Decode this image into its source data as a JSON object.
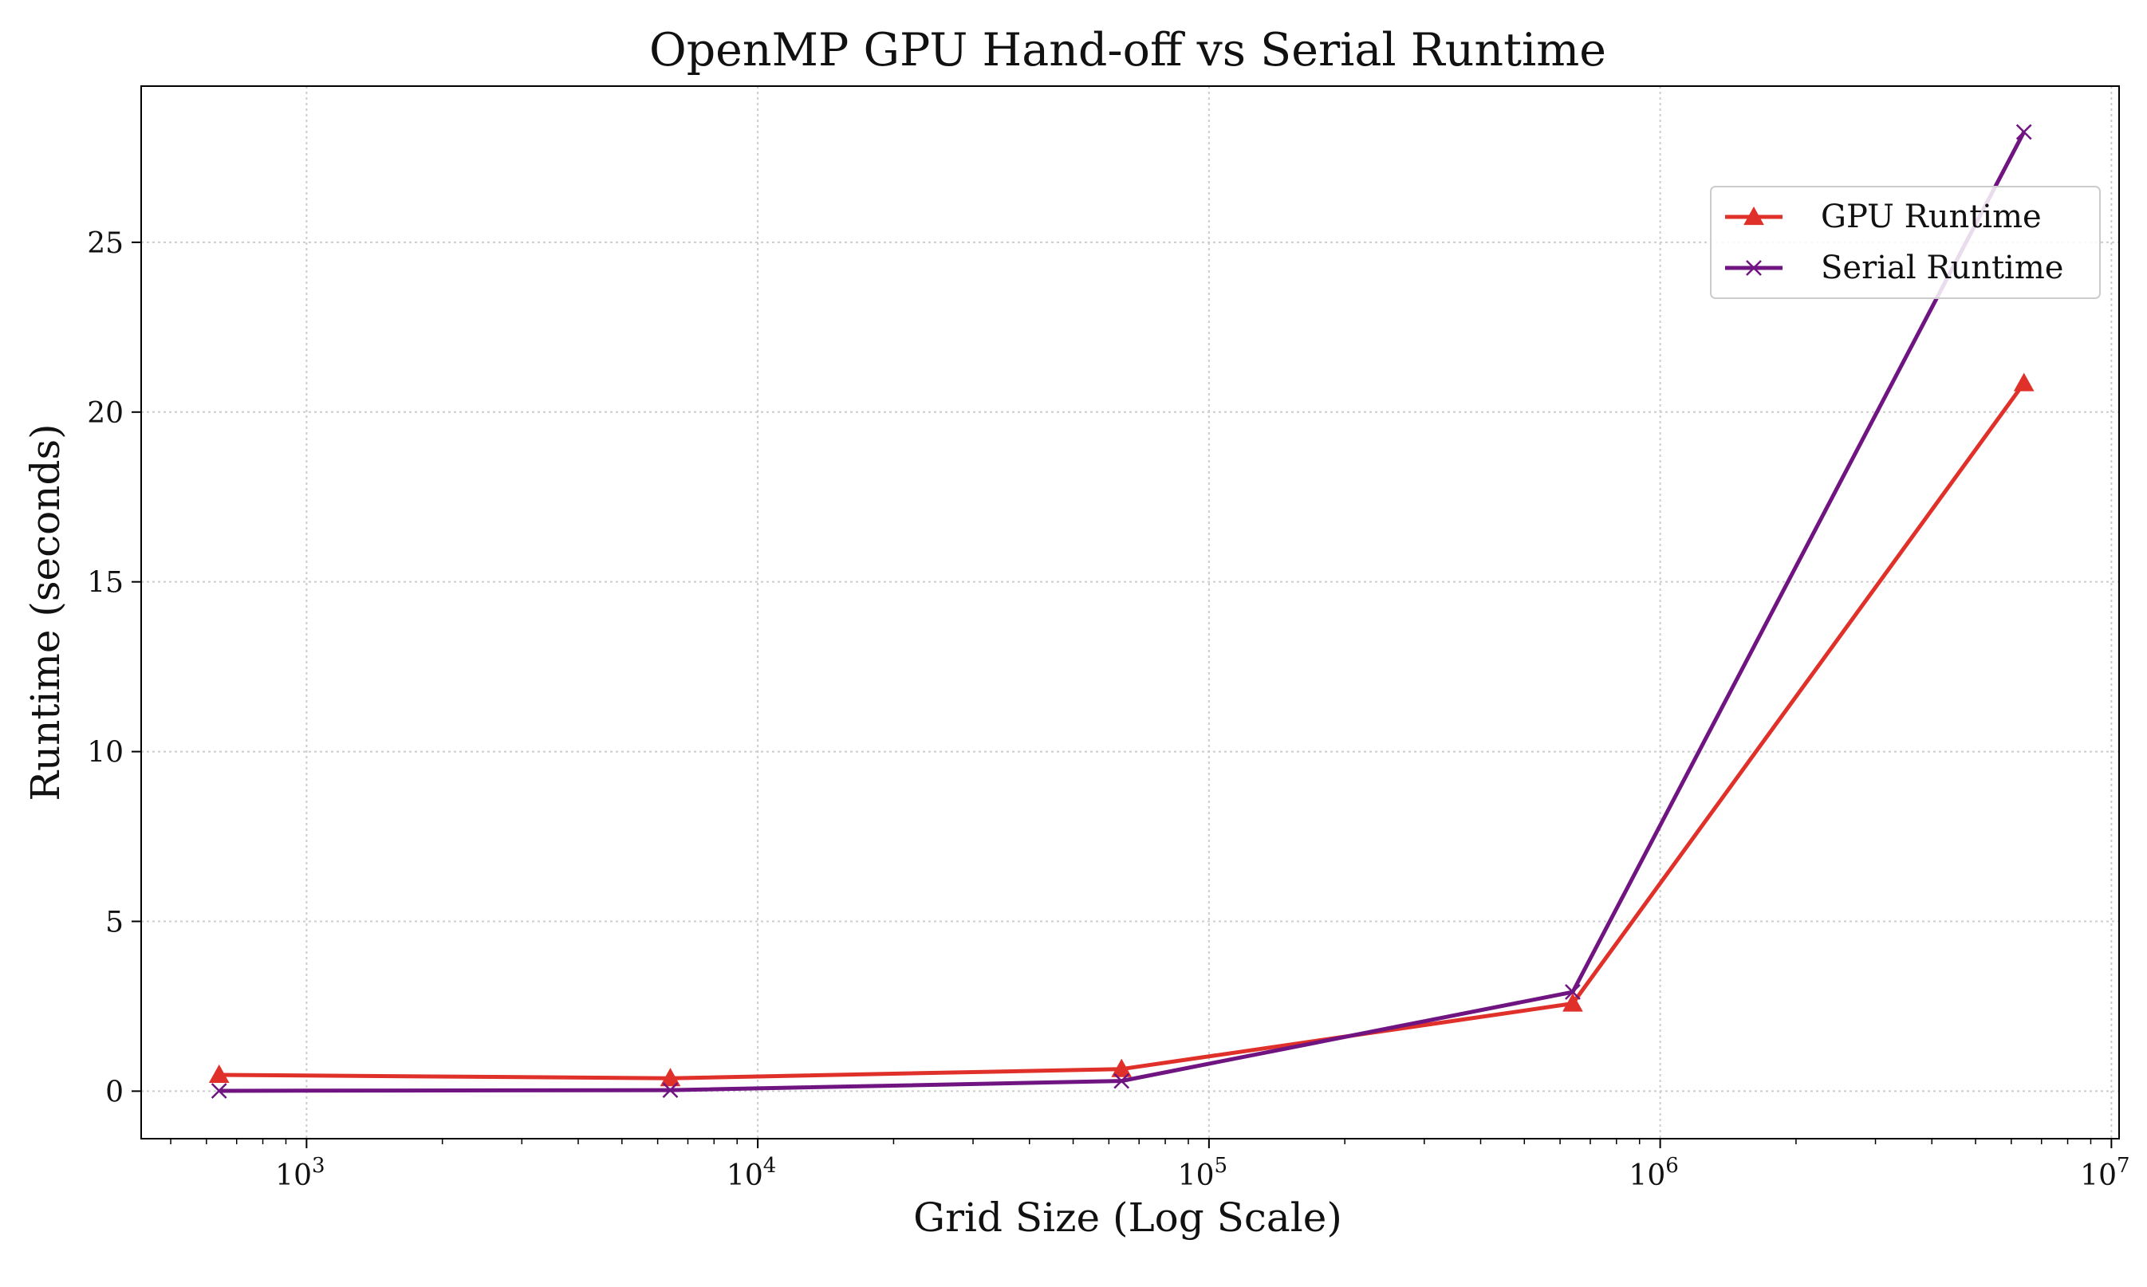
{
  "chart_data": {
    "type": "line",
    "title": "OpenMP GPU Hand-off vs Serial Runtime",
    "xlabel": "Grid Size (Log Scale)",
    "ylabel": "Runtime (seconds)",
    "x_scale": "log",
    "x": [
      640,
      6400,
      64000,
      640000,
      6400000
    ],
    "xlim": [
      430,
      10400000
    ],
    "ylim": [
      -1.4,
      29.6
    ],
    "x_ticks": [
      {
        "value": 1000,
        "base": "10",
        "exp": "3"
      },
      {
        "value": 10000,
        "base": "10",
        "exp": "4"
      },
      {
        "value": 100000,
        "base": "10",
        "exp": "5"
      },
      {
        "value": 1000000,
        "base": "10",
        "exp": "6"
      },
      {
        "value": 10000000,
        "base": "10",
        "exp": "7"
      }
    ],
    "y_ticks": [
      {
        "value": 0,
        "label": "0"
      },
      {
        "value": 5,
        "label": "5"
      },
      {
        "value": 10,
        "label": "10"
      },
      {
        "value": 15,
        "label": "15"
      },
      {
        "value": 20,
        "label": "20"
      },
      {
        "value": 25,
        "label": "25"
      }
    ],
    "grid": true,
    "legend_position": "upper-right",
    "series": [
      {
        "name": "GPU Runtime",
        "marker": "triangle",
        "color": "#e0302a",
        "values": [
          0.48,
          0.38,
          0.65,
          2.58,
          20.85
        ]
      },
      {
        "name": "Serial Runtime",
        "marker": "x",
        "color": "#6f1480",
        "values": [
          0.01,
          0.03,
          0.3,
          2.92,
          28.25
        ]
      }
    ]
  }
}
